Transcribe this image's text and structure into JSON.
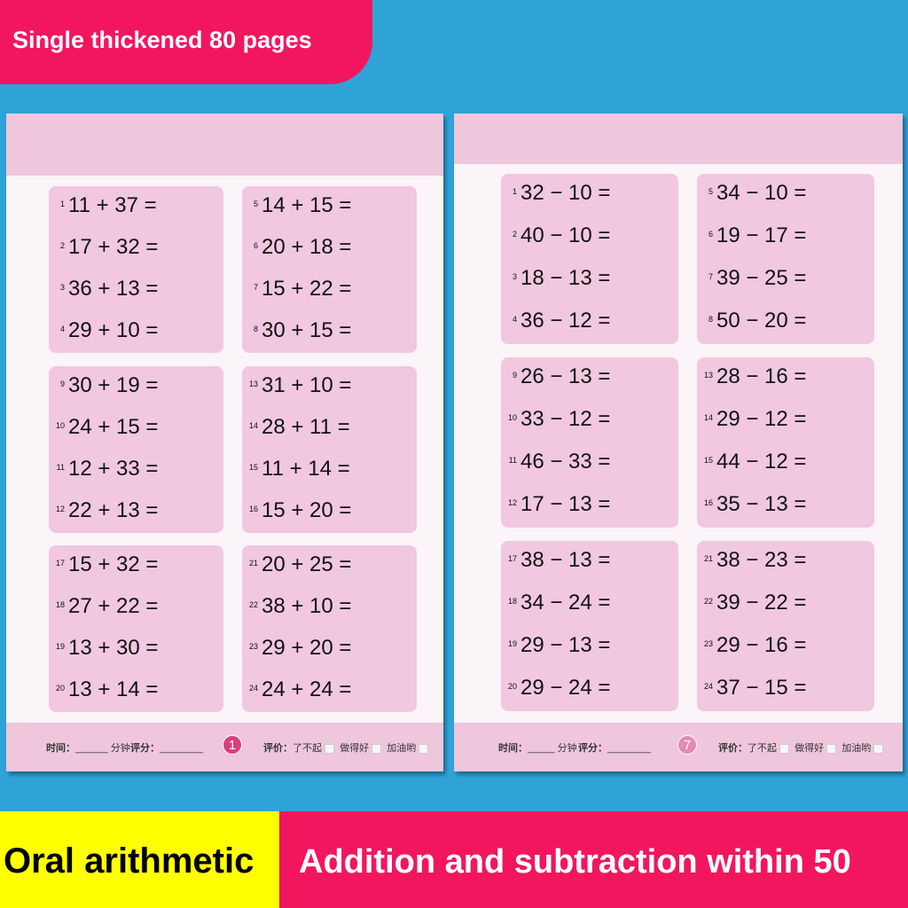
{
  "banner": "Single thickened 80 pages",
  "bottom_left": "Oral arithmetic",
  "bottom_right": "Addition and subtraction within 50",
  "colors": {
    "background": "#2fa3d8",
    "accent_pink": "#f2165f",
    "accent_yellow": "#ffff00",
    "box": "#f1c8df"
  },
  "left_page": {
    "page_number": "1",
    "problems": [
      [
        "1",
        "11 + 37 ="
      ],
      [
        "2",
        "17 + 32 ="
      ],
      [
        "3",
        "36 + 13 ="
      ],
      [
        "4",
        "29 + 10 ="
      ],
      [
        "5",
        "14 + 15 ="
      ],
      [
        "6",
        "20 + 18 ="
      ],
      [
        "7",
        "15 + 22 ="
      ],
      [
        "8",
        "30 + 15 ="
      ],
      [
        "9",
        "30 + 19 ="
      ],
      [
        "10",
        "24 + 15 ="
      ],
      [
        "11",
        "12 + 33 ="
      ],
      [
        "12",
        "22 + 13 ="
      ],
      [
        "13",
        "31 + 10 ="
      ],
      [
        "14",
        "28 + 11 ="
      ],
      [
        "15",
        "11 + 14 ="
      ],
      [
        "16",
        "15 + 20 ="
      ],
      [
        "17",
        "15 + 32 ="
      ],
      [
        "18",
        "27 + 22 ="
      ],
      [
        "19",
        "13 + 30 ="
      ],
      [
        "20",
        "13 + 14 ="
      ],
      [
        "21",
        "20 + 25 ="
      ],
      [
        "22",
        "38 + 10 ="
      ],
      [
        "23",
        "29 + 20 ="
      ],
      [
        "24",
        "24 + 24 ="
      ]
    ]
  },
  "right_page": {
    "page_number": "7",
    "problems": [
      [
        "1",
        "32 − 10 ="
      ],
      [
        "2",
        "40 − 10 ="
      ],
      [
        "3",
        "18 − 13 ="
      ],
      [
        "4",
        "36 − 12 ="
      ],
      [
        "5",
        "34 − 10 ="
      ],
      [
        "6",
        "19 − 17 ="
      ],
      [
        "7",
        "39 − 25 ="
      ],
      [
        "8",
        "50 − 20 ="
      ],
      [
        "9",
        "26 − 13 ="
      ],
      [
        "10",
        "33 − 12 ="
      ],
      [
        "11",
        "46 − 33 ="
      ],
      [
        "12",
        "17 − 13 ="
      ],
      [
        "13",
        "28 − 16 ="
      ],
      [
        "14",
        "29 − 12 ="
      ],
      [
        "15",
        "44 − 12 ="
      ],
      [
        "16",
        "35 − 13 ="
      ],
      [
        "17",
        "38 − 13 ="
      ],
      [
        "18",
        "34 − 24 ="
      ],
      [
        "19",
        "29 − 13 ="
      ],
      [
        "20",
        "29 − 24 ="
      ],
      [
        "21",
        "38 − 23 ="
      ],
      [
        "22",
        "39 − 22 ="
      ],
      [
        "23",
        "29 − 16 ="
      ],
      [
        "24",
        "37 − 15 ="
      ]
    ]
  },
  "footer": {
    "time_label": "时间：",
    "minutes": "分钟",
    "score_label": "评分：",
    "eval_label": "评价：",
    "opt1": "了不起",
    "opt2": "做得好",
    "opt3": "加油哟"
  }
}
